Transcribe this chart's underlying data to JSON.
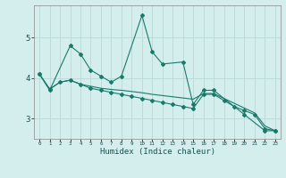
{
  "xlabel": "Humidex (Indice chaleur)",
  "background_color": "#d4eeed",
  "grid_color": "#b8d8d6",
  "line_color": "#1a7a6a",
  "x_ticks": [
    0,
    1,
    2,
    3,
    4,
    5,
    6,
    7,
    8,
    9,
    10,
    11,
    12,
    13,
    14,
    15,
    16,
    17,
    18,
    19,
    20,
    21,
    22,
    23
  ],
  "ylim": [
    2.5,
    5.8
  ],
  "xlim": [
    -0.5,
    23.5
  ],
  "series": [
    [
      4.1,
      3.7,
      null,
      4.8,
      4.6,
      4.2,
      4.05,
      3.9,
      4.05,
      null,
      5.55,
      4.65,
      4.35,
      null,
      4.4,
      3.35,
      3.7,
      3.7,
      null,
      null,
      3.1,
      null,
      2.7,
      2.7
    ],
    [
      4.1,
      3.73,
      3.9,
      3.95,
      3.85,
      3.75,
      3.7,
      3.65,
      3.6,
      3.55,
      3.5,
      3.45,
      3.4,
      3.35,
      3.3,
      3.25,
      3.6,
      3.6,
      3.45,
      3.3,
      3.2,
      3.1,
      2.75,
      2.7
    ],
    [
      4.1,
      3.73,
      3.9,
      3.95,
      3.85,
      3.8,
      3.75,
      3.72,
      3.7,
      3.67,
      3.64,
      3.6,
      3.57,
      3.54,
      3.51,
      3.48,
      3.62,
      3.62,
      3.5,
      3.38,
      3.26,
      3.14,
      2.82,
      2.7
    ]
  ]
}
